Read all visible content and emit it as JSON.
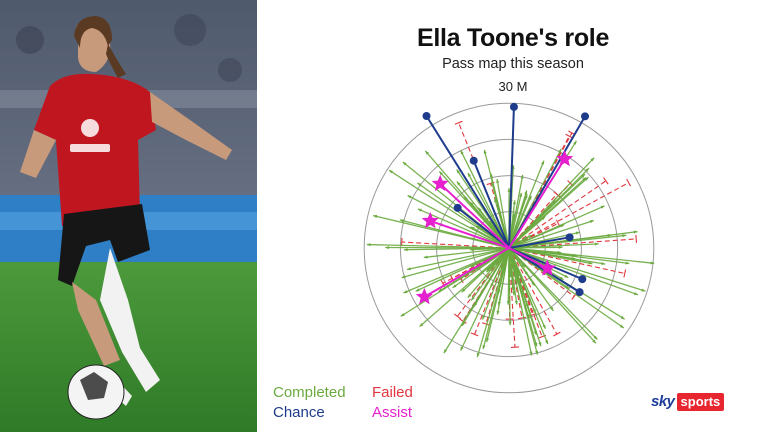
{
  "title": "Ella Toone's role",
  "subtitle": "Pass map this season",
  "chart_data": {
    "type": "radial-pass-map",
    "title": "Ella Toone's role",
    "subtitle": "Pass map this season",
    "scale_label": "30 M",
    "rings_m": [
      10,
      20,
      30,
      40
    ],
    "legend": [
      {
        "label": "Completed",
        "color": "#6aaa3f"
      },
      {
        "label": "Failed",
        "color": "#e0363d"
      },
      {
        "label": "Chance",
        "color": "#1f3c8c"
      },
      {
        "label": "Assist",
        "color": "#e61fcf"
      }
    ],
    "chances": [
      {
        "angle_deg": 30,
        "length_m": 42
      },
      {
        "angle_deg": 2,
        "length_m": 39
      },
      {
        "angle_deg": -32,
        "length_m": 43
      },
      {
        "angle_deg": -22,
        "length_m": 26
      },
      {
        "angle_deg": -52,
        "length_m": 18
      },
      {
        "angle_deg": 80,
        "length_m": 17
      },
      {
        "angle_deg": 122,
        "length_m": 23
      },
      {
        "angle_deg": 113,
        "length_m": 22
      }
    ],
    "assists": [
      {
        "angle_deg": 32,
        "length_m": 29
      },
      {
        "angle_deg": -47,
        "length_m": 26
      },
      {
        "angle_deg": -71,
        "length_m": 23
      },
      {
        "angle_deg": -120,
        "length_m": 27
      },
      {
        "angle_deg": 118,
        "length_m": 12
      }
    ],
    "colors": {
      "completed": "#6aaa3f",
      "failed": "#e0363d",
      "chance": "#1f3c8c",
      "assist": "#e61fcf",
      "rings": "#9a9a9a"
    }
  },
  "brand": {
    "sky": "sky",
    "sports": "sports"
  }
}
